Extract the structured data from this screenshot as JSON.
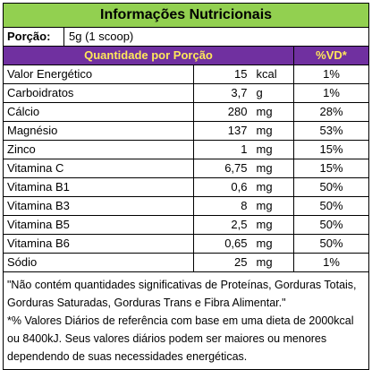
{
  "title": "Informações Nutricionais",
  "portion": {
    "label": "Porção:",
    "value": "5g (1 scoop)"
  },
  "header": {
    "quantity": "Quantidade por Porção",
    "vd": "%VD*"
  },
  "rows": [
    {
      "name": "Valor Energético",
      "qty": "15",
      "unit": "kcal",
      "vd": "1%"
    },
    {
      "name": "Carboidratos",
      "qty": "3,7",
      "unit": "g",
      "vd": "1%"
    },
    {
      "name": "Cálcio",
      "qty": "280",
      "unit": "mg",
      "vd": "28%"
    },
    {
      "name": "Magnésio",
      "qty": "137",
      "unit": "mg",
      "vd": "53%"
    },
    {
      "name": "Zinco",
      "qty": "1",
      "unit": "mg",
      "vd": "15%"
    },
    {
      "name": "Vitamina C",
      "qty": "6,75",
      "unit": "mg",
      "vd": "15%"
    },
    {
      "name": "Vitamina B1",
      "qty": "0,6",
      "unit": "mg",
      "vd": "50%"
    },
    {
      "name": "Vitamina B3",
      "qty": "8",
      "unit": "mg",
      "vd": "50%"
    },
    {
      "name": "Vitamina B5",
      "qty": "2,5",
      "unit": "mg",
      "vd": "50%"
    },
    {
      "name": "Vitamina B6",
      "qty": "0,65",
      "unit": "mg",
      "vd": "50%"
    },
    {
      "name": "Sódio",
      "qty": "25",
      "unit": "mg",
      "vd": "1%"
    }
  ],
  "notes": {
    "line1": "\"Não contém quantidades significativas de Proteínas, Gorduras Totais, Gorduras Saturadas, Gorduras Trans e Fibra Alimentar.\"",
    "line2": "*% Valores Diários de referência com base em uma dieta de 2000kcal ou 8400kJ. Seus valores diários podem ser maiores ou menores dependendo de suas necessidades energéticas."
  },
  "colors": {
    "title_bg": "#92d050",
    "header_bg": "#7030a0",
    "header_text": "#ffe85a"
  }
}
